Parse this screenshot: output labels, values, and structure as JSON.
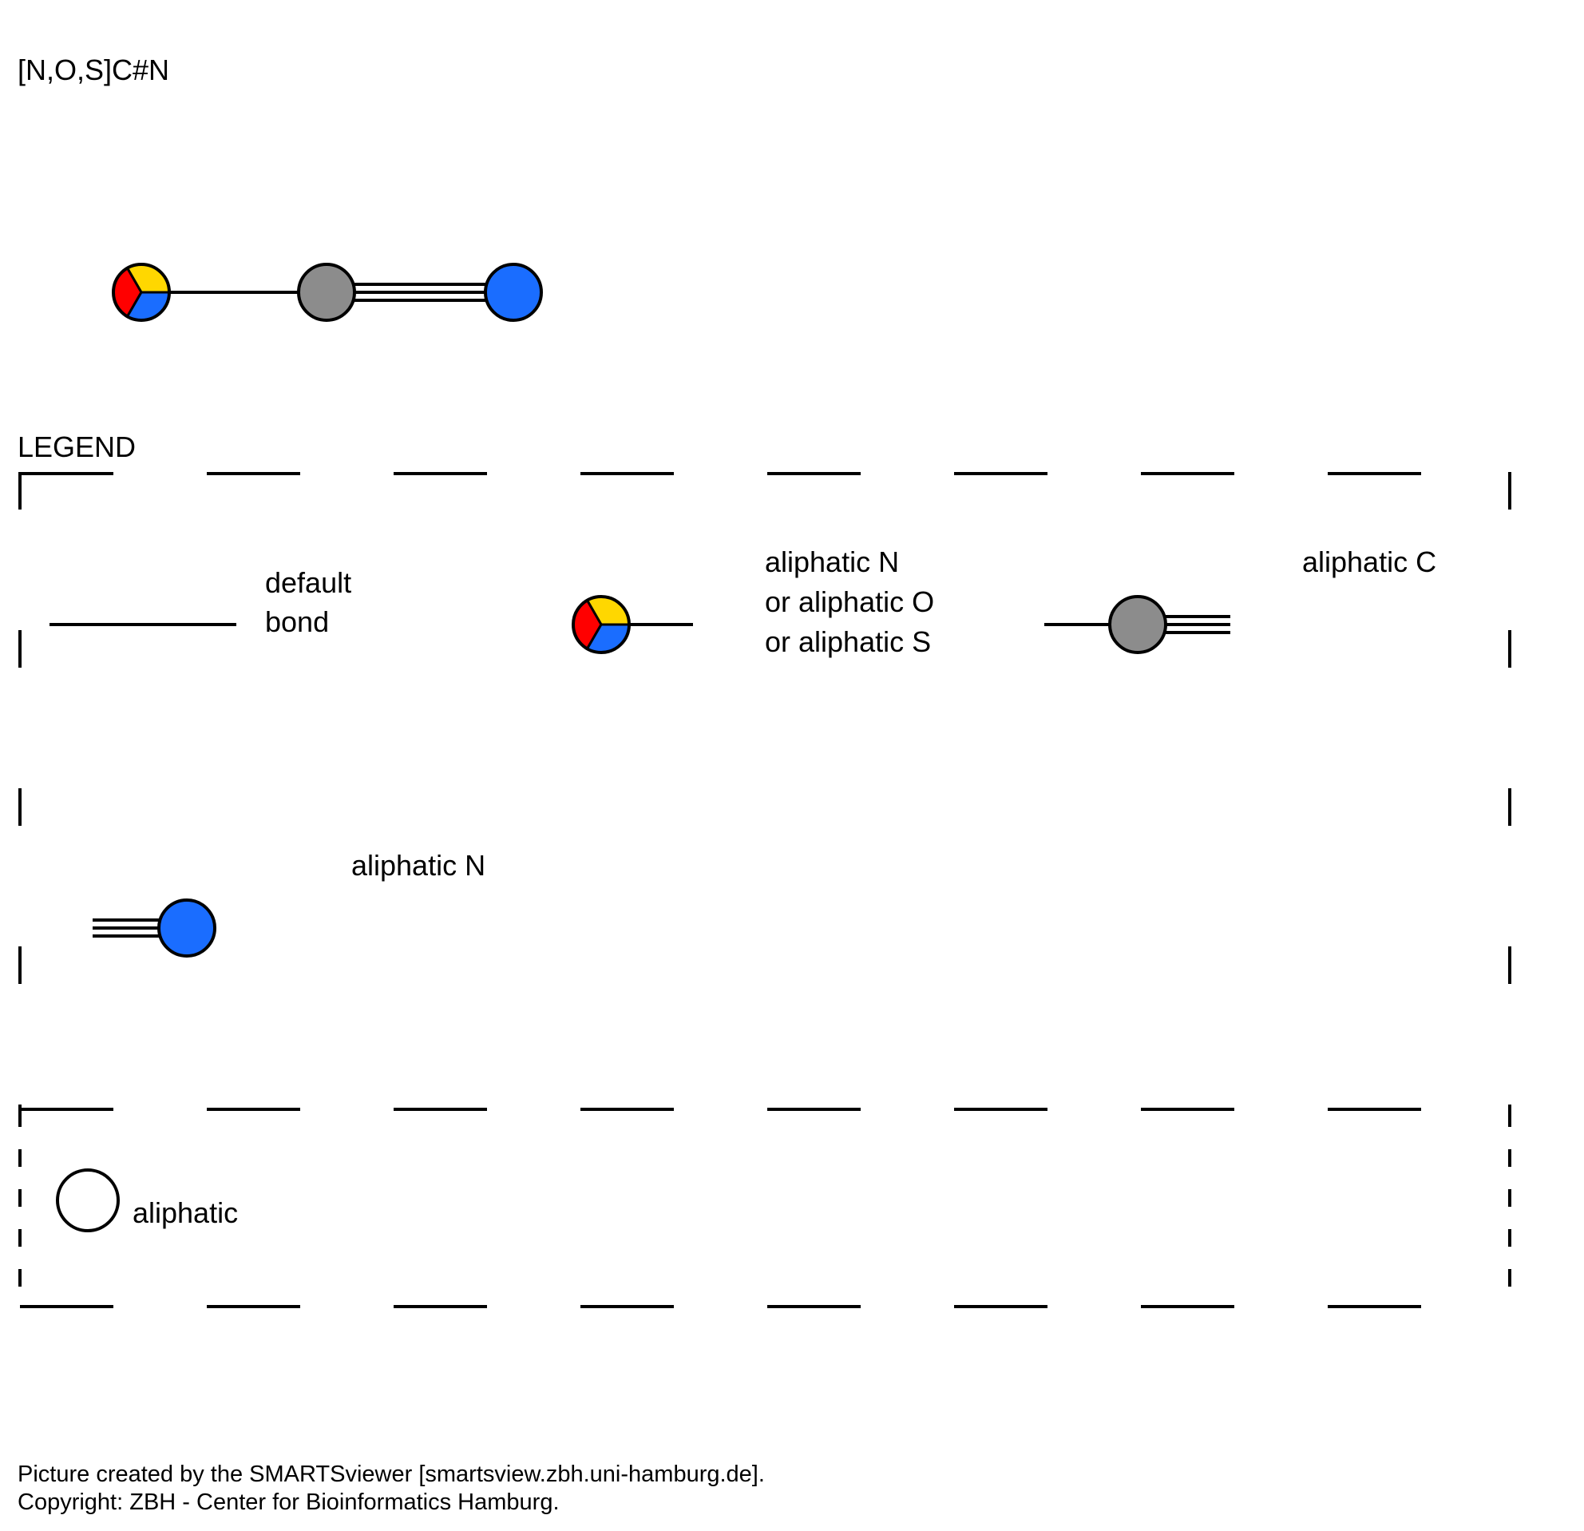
{
  "smarts": "[N,O,S]C#N",
  "legend_title": "LEGEND",
  "legend": {
    "default_bond": [
      "default",
      "bond"
    ],
    "atom_nos": [
      "aliphatic N",
      "or aliphatic O",
      "or aliphatic S"
    ],
    "atom_c": "aliphatic C",
    "atom_n": "aliphatic N",
    "aliphatic": "aliphatic"
  },
  "footer": {
    "line1": "Picture created by the SMARTSviewer [smartsview.zbh.uni-hamburg.de].",
    "line2": "Copyright: ZBH - Center for Bioinformatics Hamburg."
  },
  "colors": {
    "nitrogen": "#1a6dff",
    "oxygen": "#ff0000",
    "sulfur": "#ffd700",
    "carbon": "#8c8c8c",
    "stroke": "#000000"
  },
  "molecule": {
    "atoms": [
      {
        "label": "N/O/S",
        "elements": [
          "S",
          "O",
          "N"
        ]
      },
      {
        "label": "C",
        "elements": [
          "C"
        ]
      },
      {
        "label": "N",
        "elements": [
          "N"
        ]
      }
    ],
    "bonds": [
      {
        "from": 0,
        "to": 1,
        "order": 1
      },
      {
        "from": 1,
        "to": 2,
        "order": 3
      }
    ]
  }
}
